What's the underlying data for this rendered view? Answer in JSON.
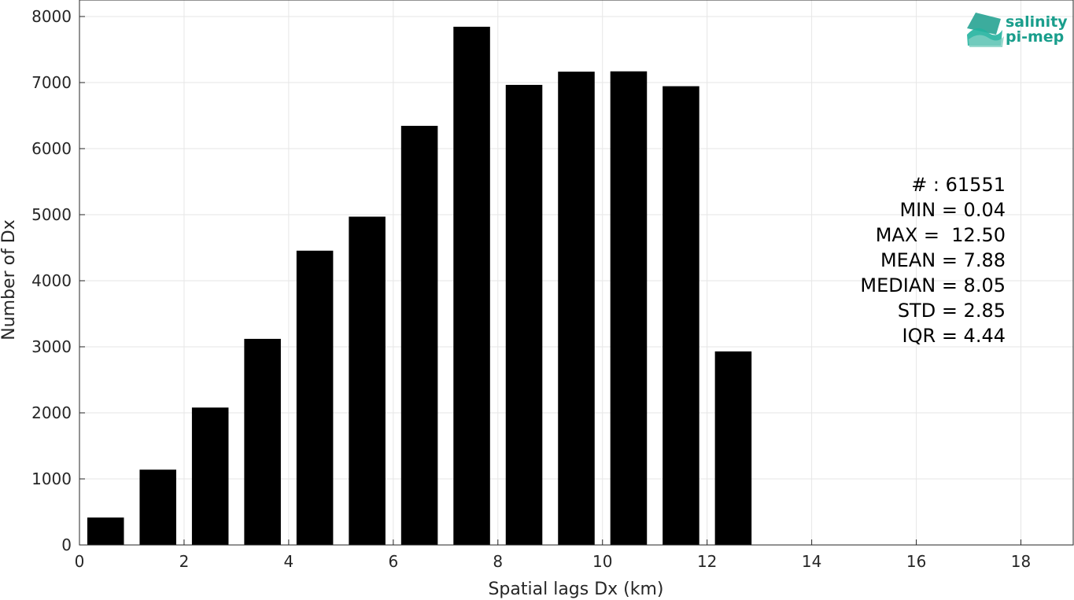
{
  "chart_data": {
    "type": "bar",
    "xlabel": "Spatial lags Dx (km)",
    "ylabel": "Number of Dx",
    "xlim": [
      0,
      19
    ],
    "ylim": [
      0,
      8000
    ],
    "xticks": [
      "0",
      "2",
      "4",
      "6",
      "8",
      "10",
      "12",
      "14",
      "16",
      "18"
    ],
    "yticks": [
      "0",
      "1000",
      "2000",
      "3000",
      "4000",
      "5000",
      "6000",
      "7000",
      "8000"
    ],
    "grid": true,
    "bin_width": 1,
    "bins": [
      {
        "center": 0.5,
        "value": 415
      },
      {
        "center": 1.5,
        "value": 1140
      },
      {
        "center": 2.5,
        "value": 2080
      },
      {
        "center": 3.5,
        "value": 3120
      },
      {
        "center": 4.5,
        "value": 4455
      },
      {
        "center": 5.5,
        "value": 4970
      },
      {
        "center": 6.5,
        "value": 6345
      },
      {
        "center": 7.5,
        "value": 7845
      },
      {
        "center": 8.5,
        "value": 6965
      },
      {
        "center": 9.5,
        "value": 7165
      },
      {
        "center": 10.5,
        "value": 7170
      },
      {
        "center": 11.5,
        "value": 6945
      },
      {
        "center": 12.5,
        "value": 2930
      }
    ],
    "bar_color": "#000000",
    "stats": [
      "# : 61551",
      "MIN = 0.04",
      "MAX =  12.50",
      "MEAN = 7.88",
      "MEDIAN = 8.05",
      "STD = 2.85",
      "IQR = 4.44"
    ]
  },
  "logo": {
    "line1": "salinity",
    "line2": "pi-mep",
    "color": "#1a9e8c"
  }
}
